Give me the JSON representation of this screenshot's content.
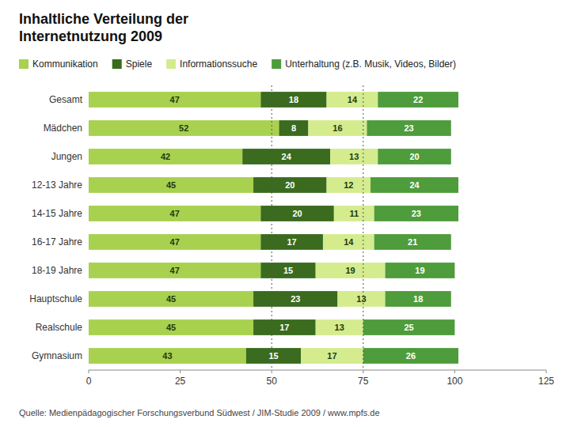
{
  "chart_data": {
    "type": "bar",
    "orientation": "horizontal",
    "stacked": true,
    "data_labels": true,
    "grid": false,
    "legend": "top",
    "title": "Inhaltliche Verteilung der\nInternetnutzung 2009",
    "annotations": [
      "Quelle: Medienpädagogischer Forschungsverbund Südwest / JIM-Studie 2009 / www.mpfs.de"
    ],
    "categories": [
      "Gesamt",
      "Mädchen",
      "Jungen",
      "12-13 Jahre",
      "14-15 Jahre",
      "16-17 Jahre",
      "18-19 Jahre",
      "Hauptschule",
      "Realschule",
      "Gymnasium"
    ],
    "series": [
      {
        "name": "Kommunikation",
        "color": "#a8d14f",
        "values": [
          47,
          52,
          42,
          45,
          47,
          47,
          47,
          45,
          45,
          43
        ]
      },
      {
        "name": "Spiele",
        "color": "#3a6b1e",
        "values": [
          18,
          8,
          24,
          20,
          20,
          17,
          15,
          23,
          17,
          15
        ]
      },
      {
        "name": "Informationssuche",
        "color": "#d4ec8e",
        "values": [
          14,
          16,
          13,
          12,
          11,
          14,
          19,
          13,
          13,
          17
        ]
      },
      {
        "name": "Unterhaltung (z.B. Musik, Videos, Bilder)",
        "color": "#4e9c3b",
        "values": [
          22,
          23,
          20,
          24,
          23,
          21,
          19,
          18,
          25,
          26
        ]
      }
    ],
    "xlim": [
      0,
      125
    ],
    "xticks": [
      0,
      25,
      50,
      75,
      100,
      125
    ],
    "reference_lines": [
      50,
      75
    ]
  }
}
